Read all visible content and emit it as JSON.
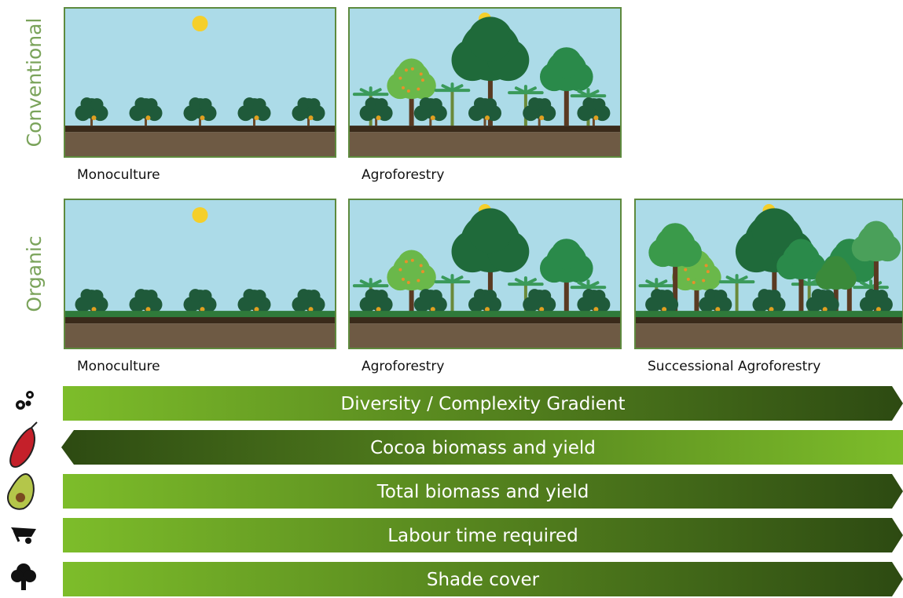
{
  "rows": [
    {
      "label": "Conventional",
      "panels": [
        "Monoculture",
        "Agroforestry"
      ]
    },
    {
      "label": "Organic",
      "panels": [
        "Monoculture",
        "Agroforestry",
        "Successional Agroforestry"
      ]
    }
  ],
  "gradients": [
    {
      "label": "Diversity / Complexity Gradient",
      "direction": "right"
    },
    {
      "label": "Cocoa biomass and yield",
      "direction": "left"
    },
    {
      "label": "Total biomass and yield",
      "direction": "right"
    },
    {
      "label": "Labour time required",
      "direction": "right"
    },
    {
      "label": "Shade cover",
      "direction": "right"
    }
  ]
}
